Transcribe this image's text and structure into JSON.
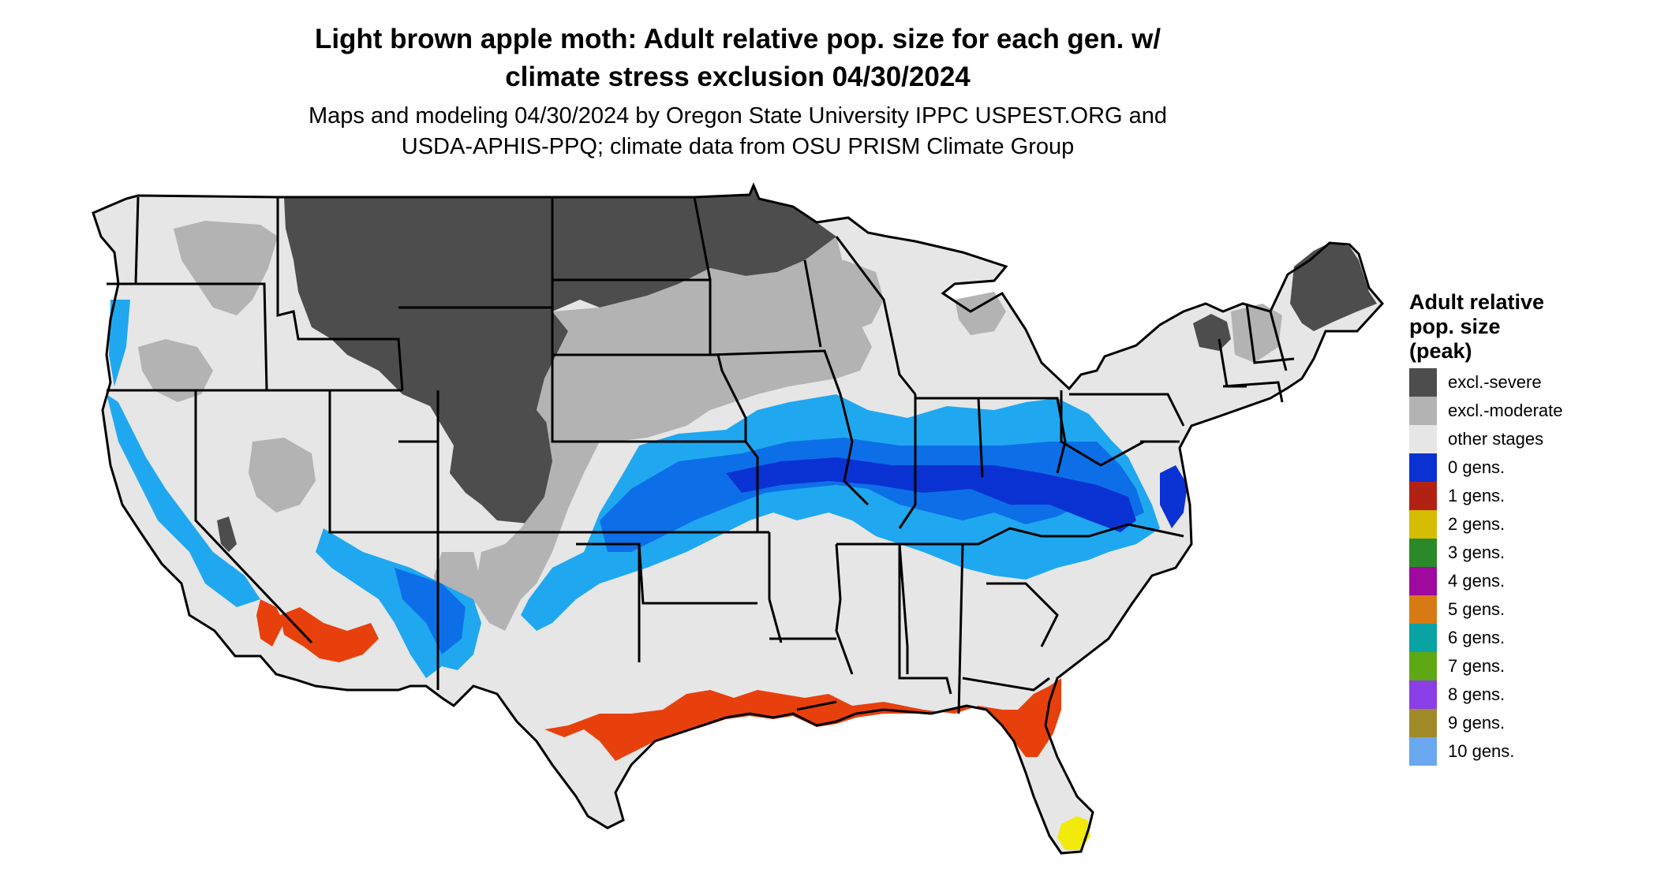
{
  "header": {
    "title_line1": "Light brown apple moth: Adult relative pop. size for each gen. w/",
    "title_line2": "climate stress exclusion 04/30/2024",
    "subtitle_line1": "Maps and modeling 04/30/2024 by Oregon State University IPPC USPEST.ORG and",
    "subtitle_line2": "USDA-APHIS-PPQ; climate data from OSU PRISM Climate Group"
  },
  "legend": {
    "title_line1": "Adult relative",
    "title_line2": "pop. size",
    "title_line3": "(peak)",
    "items": [
      {
        "label": "excl.-severe",
        "color": "#4d4d4d"
      },
      {
        "label": "excl.-moderate",
        "color": "#b3b3b3"
      },
      {
        "label": "other stages",
        "color": "#e6e6e6"
      },
      {
        "label": "0 gens.",
        "color": "#0a32d2"
      },
      {
        "label": "1 gens.",
        "color": "#b22212"
      },
      {
        "label": "2 gens.",
        "color": "#d4bc00"
      },
      {
        "label": "3 gens.",
        "color": "#2a8a2a"
      },
      {
        "label": "4 gens.",
        "color": "#a0089e"
      },
      {
        "label": "5 gens.",
        "color": "#d87a14"
      },
      {
        "label": "6 gens.",
        "color": "#0aa3a3"
      },
      {
        "label": "7 gens.",
        "color": "#5fa815"
      },
      {
        "label": "8 gens.",
        "color": "#8a3ee6"
      },
      {
        "label": "9 gens.",
        "color": "#a08a28"
      },
      {
        "label": "10 gens.",
        "color": "#6aa8f0"
      }
    ]
  },
  "map_colors": {
    "ocean": "#ffffff",
    "land": "#e6e6e6",
    "severe": "#4d4d4d",
    "moderate": "#b3b3b3",
    "light_blue": "#1fa8f0",
    "mid_blue": "#0d6fe8",
    "dark_blue": "#0a32d2",
    "red_orange": "#e8400c",
    "yellow": "#f2ea0a",
    "borders": "#000000"
  }
}
